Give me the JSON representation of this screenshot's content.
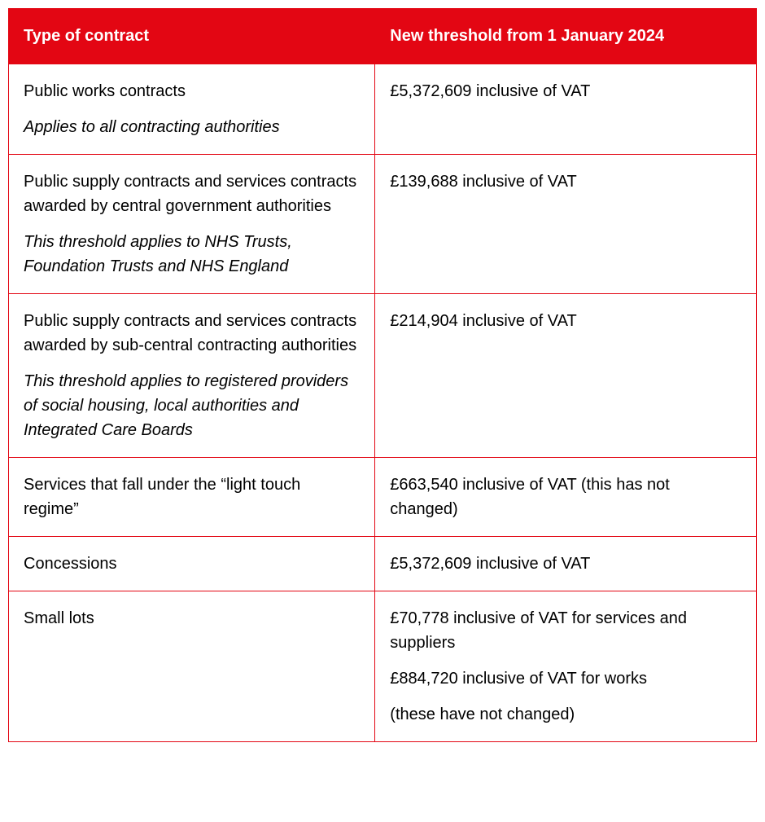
{
  "table": {
    "header_bg": "#e30613",
    "header_text_color": "#ffffff",
    "border_color": "#e30613",
    "body_text_color": "#000000",
    "font_size": 20,
    "columns": [
      "Type of contract",
      "New threshold from 1 January 2024"
    ],
    "rows": [
      {
        "left_main": "Public works contracts",
        "left_note": "Applies to all contracting authorities",
        "right_lines": [
          "£5,372,609 inclusive of VAT"
        ]
      },
      {
        "left_main": "Public supply contracts and services contracts awarded by central government authorities",
        "left_note": "This threshold applies to NHS Trusts, Foundation Trusts and NHS England",
        "right_lines": [
          "£139,688 inclusive of VAT"
        ]
      },
      {
        "left_main": "Public supply contracts and services contracts awarded by sub-central contracting authorities",
        "left_note": "This threshold applies to registered providers of social housing, local authorities and Integrated Care Boards",
        "right_lines": [
          "£214,904 inclusive of VAT"
        ]
      },
      {
        "left_main": "Services that fall under the “light touch regime”",
        "left_note": "",
        "right_lines": [
          "£663,540 inclusive of VAT (this has not changed)"
        ]
      },
      {
        "left_main": "Concessions",
        "left_note": "",
        "right_lines": [
          "£5,372,609 inclusive of VAT"
        ]
      },
      {
        "left_main": "Small lots",
        "left_note": "",
        "right_lines": [
          "£70,778 inclusive of VAT for services and suppliers",
          "£884,720 inclusive of VAT for works",
          "(these have not changed)"
        ]
      }
    ]
  }
}
